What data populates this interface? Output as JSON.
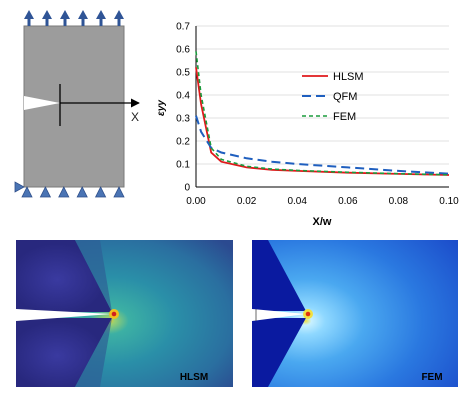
{
  "colors": {
    "specimen_fill": "#9c9c9c",
    "specimen_stroke": "#7a7a7a",
    "arrow_blue": "#2f5496",
    "support_blue": "#4a74b4",
    "hlsm": "#e0191b",
    "qfm": "#1f5fbf",
    "fem": "#1a9b3c"
  },
  "schematic": {
    "axis_label": "X",
    "top_arrow_count": 6,
    "bottom_support_count": 6,
    "top_arrow_icon": "up-arrow-icon",
    "support_icon": "triangle-support-icon",
    "corner_support_icon": "side-triangle-icon"
  },
  "chart_data": {
    "type": "line",
    "xlabel": "X/w",
    "ylabel": "εyy",
    "xlim": [
      0,
      0.1
    ],
    "ylim": [
      0,
      0.7
    ],
    "xticks": [
      "0.00",
      "0.02",
      "0.04",
      "0.06",
      "0.08",
      "0.10"
    ],
    "yticks": [
      "0",
      "0.1",
      "0.2",
      "0.3",
      "0.4",
      "0.5",
      "0.6",
      "0.7"
    ],
    "legend_position": "top-right",
    "series": [
      {
        "name": "HLSM",
        "style": "solid",
        "x": [
          0,
          0.002,
          0.006,
          0.01,
          0.02,
          0.03,
          0.04,
          0.06,
          0.08,
          0.1
        ],
        "y": [
          0.52,
          0.36,
          0.15,
          0.11,
          0.085,
          0.075,
          0.07,
          0.062,
          0.057,
          0.052
        ]
      },
      {
        "name": "QFM",
        "style": "long-dash",
        "x": [
          0,
          0.002,
          0.006,
          0.01,
          0.02,
          0.03,
          0.04,
          0.06,
          0.08,
          0.1
        ],
        "y": [
          0.31,
          0.24,
          0.17,
          0.15,
          0.125,
          0.11,
          0.1,
          0.085,
          0.07,
          0.058
        ]
      },
      {
        "name": "FEM",
        "style": "dashed",
        "x": [
          0,
          0.002,
          0.006,
          0.01,
          0.02,
          0.03,
          0.04,
          0.06,
          0.08,
          0.1
        ],
        "y": [
          0.59,
          0.4,
          0.17,
          0.12,
          0.09,
          0.078,
          0.072,
          0.064,
          0.058,
          0.053
        ]
      }
    ]
  },
  "contours": {
    "left_label": "HLSM",
    "right_label": "FEM",
    "left_colors": {
      "dark": "#2b2a8a",
      "mid": "#2a6fa8",
      "light": "#3cb0a4",
      "tip": "#f0c020",
      "hot": "#d02020"
    },
    "right_colors": {
      "dark": "#0a1aa0",
      "mid": "#2a88e8",
      "light": "#8fd8ff",
      "tip": "#f0e040",
      "hot": "#e03010"
    }
  }
}
